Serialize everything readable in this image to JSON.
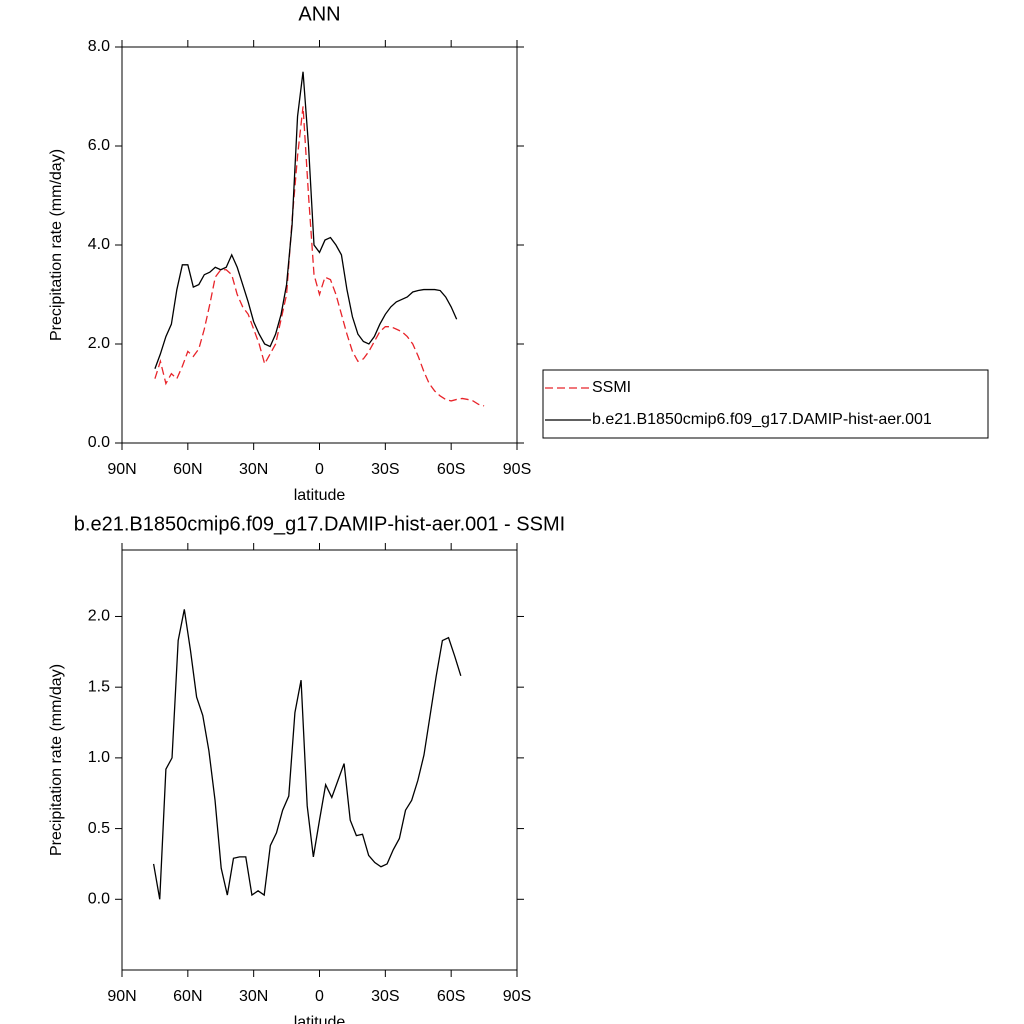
{
  "chart_data": [
    {
      "type": "line",
      "title": "ANN",
      "xlabel": "latitude",
      "ylabel": "Precipitation rate (mm/day)",
      "xlim": [
        90,
        -90
      ],
      "xticks": [
        {
          "value": 90,
          "label": "90N"
        },
        {
          "value": 60,
          "label": "60N"
        },
        {
          "value": 30,
          "label": "30N"
        },
        0,
        {
          "value": -30,
          "label": "30S"
        },
        {
          "value": -60,
          "label": "60S"
        },
        {
          "value": -90,
          "label": "90S"
        }
      ],
      "ylim": [
        0,
        8
      ],
      "yticks": [
        {
          "value": 0,
          "label": "0.0"
        },
        {
          "value": 2,
          "label": "2.0"
        },
        {
          "value": 4,
          "label": "4.0"
        },
        {
          "value": 6,
          "label": "6.0"
        },
        {
          "value": 8,
          "label": "8.0"
        }
      ],
      "legend": "right",
      "series": [
        {
          "name": "SSMI",
          "color": "#e8242a",
          "style": "dashed",
          "x": [
            75,
            72.5,
            70,
            67.5,
            65,
            62.5,
            60,
            57.5,
            55,
            52.5,
            50,
            47.5,
            45,
            42.5,
            40,
            37.5,
            35,
            32.5,
            30,
            27.5,
            25,
            22.5,
            20,
            17.5,
            15,
            12.5,
            10,
            7.5,
            5,
            2.5,
            0,
            -2.5,
            -5,
            -7.5,
            -10,
            -12.5,
            -15,
            -17.5,
            -20,
            -22.5,
            -25,
            -27.5,
            -30,
            -32.5,
            -35,
            -37.5,
            -40,
            -42.5,
            -45,
            -47.5,
            -50,
            -52.5,
            -55,
            -57.5,
            -60,
            -62.5,
            -65,
            -67.5,
            -70,
            -72.5,
            -75
          ],
          "values": [
            1.3,
            1.65,
            1.2,
            1.4,
            1.3,
            1.55,
            1.85,
            1.75,
            1.9,
            2.3,
            2.8,
            3.35,
            3.5,
            3.5,
            3.4,
            3.0,
            2.75,
            2.6,
            2.3,
            2.0,
            1.6,
            1.8,
            2.0,
            2.5,
            3.0,
            4.5,
            5.8,
            6.8,
            5.0,
            3.4,
            3.0,
            3.35,
            3.3,
            3.0,
            2.6,
            2.2,
            1.85,
            1.65,
            1.7,
            1.85,
            2.05,
            2.25,
            2.35,
            2.35,
            2.3,
            2.25,
            2.15,
            2.0,
            1.75,
            1.45,
            1.2,
            1.05,
            0.95,
            0.88,
            0.85,
            0.88,
            0.9,
            0.88,
            0.85,
            0.78,
            0.75
          ]
        },
        {
          "name": "b.e21.B1850cmip6.f09_g17.DAMIP-hist-aer.001",
          "color": "#000000",
          "style": "solid",
          "x": [
            75,
            72.5,
            70,
            67.5,
            65,
            62.5,
            60,
            57.5,
            55,
            52.5,
            50,
            47.5,
            45,
            42.5,
            40,
            37.5,
            35,
            32.5,
            30,
            27.5,
            25,
            22.5,
            20,
            17.5,
            15,
            12.5,
            10,
            7.5,
            5,
            2.5,
            0,
            -2.5,
            -5,
            -7.5,
            -10,
            -12.5,
            -15,
            -17.5,
            -20,
            -22.5,
            -25,
            -27.5,
            -30,
            -32.5,
            -35,
            -37.5,
            -40,
            -42.5,
            -45,
            -47.5,
            -50,
            -52.5,
            -55,
            -57.5,
            -60,
            -62.5
          ],
          "values": [
            1.5,
            1.8,
            2.15,
            2.4,
            3.1,
            3.6,
            3.6,
            3.15,
            3.2,
            3.4,
            3.45,
            3.55,
            3.5,
            3.55,
            3.8,
            3.55,
            3.2,
            2.85,
            2.45,
            2.2,
            2.0,
            1.95,
            2.2,
            2.6,
            3.2,
            4.4,
            6.6,
            7.5,
            6.0,
            4.0,
            3.85,
            4.1,
            4.15,
            4.0,
            3.8,
            3.1,
            2.55,
            2.2,
            2.05,
            2.0,
            2.15,
            2.4,
            2.6,
            2.75,
            2.85,
            2.9,
            2.95,
            3.05,
            3.08,
            3.1,
            3.1,
            3.1,
            3.08,
            2.95,
            2.75,
            2.5
          ]
        }
      ]
    },
    {
      "type": "line",
      "title": "b.e21.B1850cmip6.f09_g17.DAMIP-hist-aer.001 - SSMI",
      "xlabel": "latitude",
      "ylabel": "Precipitation rate (mm/day)",
      "xlim": [
        90,
        -90
      ],
      "xticks": [
        {
          "value": 90,
          "label": "90N"
        },
        {
          "value": 60,
          "label": "60N"
        },
        {
          "value": 30,
          "label": "30N"
        },
        0,
        {
          "value": -30,
          "label": "30S"
        },
        {
          "value": -60,
          "label": "60S"
        },
        {
          "value": -90,
          "label": "90S"
        }
      ],
      "ylim": [
        -0.5,
        2.47
      ],
      "yticks": [
        {
          "value": 0,
          "label": "0.0"
        },
        0.5,
        {
          "value": 1,
          "label": "1.0"
        },
        1.5,
        {
          "value": 2,
          "label": "2.0"
        }
      ],
      "series": [
        {
          "color": "#000000",
          "style": "solid",
          "x": [
            75.6,
            72.8,
            70,
            67.2,
            64.4,
            61.6,
            58.8,
            56,
            53.2,
            50.4,
            47.6,
            44.8,
            42,
            39.2,
            36.4,
            33.6,
            30.8,
            28,
            25.2,
            22.4,
            19.6,
            16.8,
            14,
            11.2,
            8.4,
            5.6,
            2.8,
            0,
            -2.8,
            -5.6,
            -8.4,
            -11.2,
            -14,
            -16.8,
            -19.6,
            -22.4,
            -25.2,
            -28,
            -30.8,
            -33.6,
            -36.4,
            -39.2,
            -42,
            -44.8,
            -47.6,
            -50.4,
            -53.2,
            -56,
            -58.8,
            -61.6,
            -64.4
          ],
          "values": [
            0.25,
            0,
            0.92,
            1.0,
            1.83,
            2.05,
            1.76,
            1.43,
            1.3,
            1.05,
            0.7,
            0.22,
            0.03,
            0.29,
            0.3,
            0.3,
            0.03,
            0.06,
            0.03,
            0.38,
            0.47,
            0.63,
            0.73,
            1.32,
            1.55,
            0.66,
            0.3,
            0.56,
            0.81,
            0.72,
            0.84,
            0.96,
            0.56,
            0.45,
            0.46,
            0.31,
            0.26,
            0.23,
            0.25,
            0.35,
            0.43,
            0.63,
            0.7,
            0.84,
            1.02,
            1.3,
            1.58,
            1.83,
            1.85,
            1.72,
            1.58
          ]
        }
      ]
    }
  ]
}
